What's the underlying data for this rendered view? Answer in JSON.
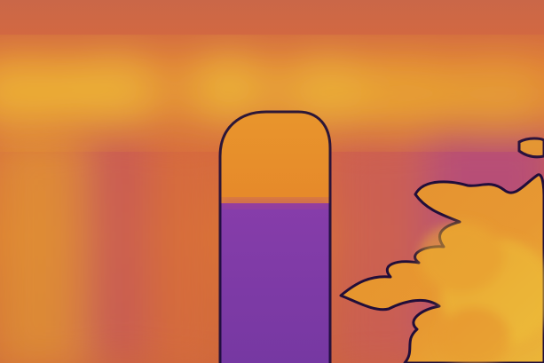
{
  "image": {
    "kind": "depth-map",
    "colormap": "plasma",
    "palette": {
      "near": "#f6d23a",
      "mid_warm": "#f09a2e",
      "mid": "#e06a3a",
      "far_magenta": "#b2478f",
      "far_purple": "#7a3aa8",
      "edge_dark": "#1b0b3a"
    },
    "scene": [
      "background-wall",
      "window-band",
      "doorway",
      "foliage"
    ]
  }
}
